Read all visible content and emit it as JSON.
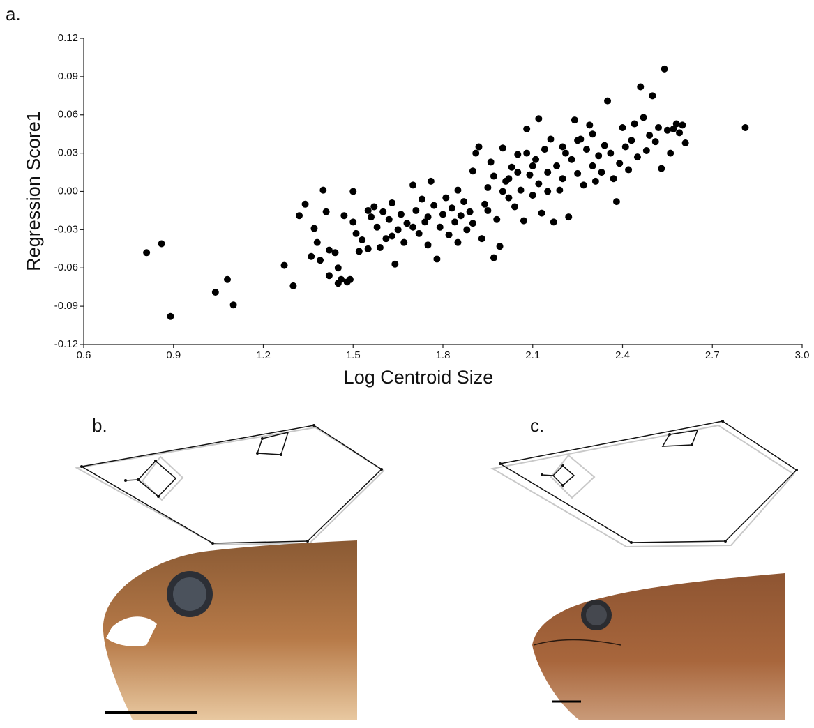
{
  "panels": {
    "a": "a.",
    "b": "b.",
    "c": "c."
  },
  "chart_data": {
    "type": "scatter",
    "x_label": "Log Centroid Size",
    "y_label": "Regression Score1",
    "color": "#000000",
    "xlim": [
      0.6,
      3.0
    ],
    "ylim": [
      -0.12,
      0.12
    ],
    "xticks": [
      0.6,
      0.9,
      1.2,
      1.5,
      1.8,
      2.1,
      2.4,
      2.7,
      {
        "value": 3.0,
        "label": "3.0"
      }
    ],
    "yticks": [
      -0.12,
      -0.09,
      -0.06,
      -0.03,
      {
        "value": 0,
        "label": "0.00"
      },
      0.03,
      0.06,
      0.09,
      0.12
    ],
    "x": [
      0.81,
      0.86,
      0.89,
      1.04,
      1.08,
      1.1,
      1.27,
      1.3,
      1.32,
      1.34,
      1.36,
      1.37,
      1.38,
      1.39,
      1.4,
      1.41,
      1.42,
      1.42,
      1.44,
      1.45,
      1.45,
      1.46,
      1.47,
      1.48,
      1.49,
      1.5,
      1.5,
      1.51,
      1.52,
      1.53,
      1.55,
      1.56,
      1.57,
      1.58,
      1.59,
      1.6,
      1.61,
      1.62,
      1.63,
      1.64,
      1.65,
      1.66,
      1.67,
      1.68,
      1.7,
      1.71,
      1.72,
      1.73,
      1.74,
      1.75,
      1.76,
      1.77,
      1.78,
      1.79,
      1.8,
      1.81,
      1.82,
      1.83,
      1.84,
      1.85,
      1.86,
      1.87,
      1.88,
      1.89,
      1.9,
      1.91,
      1.92,
      1.93,
      1.94,
      1.95,
      1.96,
      1.97,
      1.98,
      1.99,
      2.0,
      2.01,
      2.02,
      2.03,
      2.04,
      2.05,
      2.06,
      2.07,
      2.08,
      2.09,
      2.1,
      2.11,
      2.12,
      2.13,
      2.14,
      2.15,
      2.16,
      2.17,
      2.18,
      2.19,
      2.2,
      2.21,
      2.22,
      2.23,
      2.24,
      2.25,
      2.26,
      2.27,
      2.28,
      2.29,
      2.3,
      2.31,
      2.32,
      2.33,
      2.34,
      2.35,
      2.36,
      2.37,
      2.38,
      2.39,
      2.4,
      2.41,
      2.42,
      2.43,
      2.44,
      2.45,
      2.46,
      2.47,
      2.48,
      2.49,
      2.5,
      2.51,
      2.52,
      2.53,
      2.54,
      2.55,
      2.56,
      2.57,
      2.58,
      2.59,
      2.6,
      2.61,
      2.81,
      1.55,
      1.63,
      1.7,
      1.75,
      1.85,
      1.9,
      1.95,
      2.0,
      2.05,
      2.1,
      2.15,
      2.2,
      2.25,
      2.3,
      2.12,
      2.02,
      1.97,
      2.08
    ],
    "values": [
      -0.048,
      -0.041,
      -0.098,
      -0.079,
      -0.069,
      -0.089,
      -0.058,
      -0.074,
      -0.019,
      -0.01,
      -0.051,
      -0.029,
      -0.04,
      -0.054,
      0.001,
      -0.016,
      -0.046,
      -0.066,
      -0.048,
      -0.072,
      -0.06,
      -0.069,
      -0.019,
      -0.071,
      -0.069,
      0.0,
      -0.024,
      -0.033,
      -0.047,
      -0.038,
      -0.045,
      -0.02,
      -0.012,
      -0.028,
      -0.044,
      -0.016,
      -0.037,
      -0.022,
      -0.009,
      -0.057,
      -0.03,
      -0.018,
      -0.04,
      -0.025,
      0.005,
      -0.015,
      -0.033,
      -0.006,
      -0.024,
      -0.042,
      0.008,
      -0.011,
      -0.053,
      -0.028,
      -0.018,
      -0.005,
      -0.034,
      -0.013,
      -0.024,
      0.001,
      -0.019,
      -0.008,
      -0.03,
      -0.016,
      0.016,
      0.03,
      0.035,
      -0.037,
      -0.01,
      0.003,
      0.023,
      -0.052,
      -0.022,
      -0.043,
      0.034,
      0.008,
      -0.005,
      0.019,
      -0.012,
      0.029,
      0.001,
      -0.023,
      0.049,
      0.013,
      -0.003,
      0.025,
      0.006,
      -0.017,
      0.033,
      0.015,
      0.041,
      -0.024,
      0.02,
      0.001,
      0.01,
      0.03,
      -0.02,
      0.025,
      0.056,
      0.014,
      0.041,
      0.005,
      0.033,
      0.052,
      0.02,
      0.008,
      0.028,
      0.015,
      0.036,
      0.071,
      0.03,
      0.01,
      -0.008,
      0.022,
      0.05,
      0.035,
      0.017,
      0.04,
      0.053,
      0.027,
      0.082,
      0.058,
      0.032,
      0.044,
      0.075,
      0.039,
      0.05,
      0.018,
      0.096,
      0.048,
      0.03,
      0.049,
      0.053,
      0.046,
      0.052,
      0.038,
      0.05,
      -0.015,
      -0.035,
      -0.028,
      -0.02,
      -0.04,
      -0.025,
      -0.015,
      0.0,
      0.015,
      0.02,
      0.0,
      0.035,
      0.04,
      0.045,
      0.057,
      0.01,
      0.012,
      0.03
    ]
  }
}
